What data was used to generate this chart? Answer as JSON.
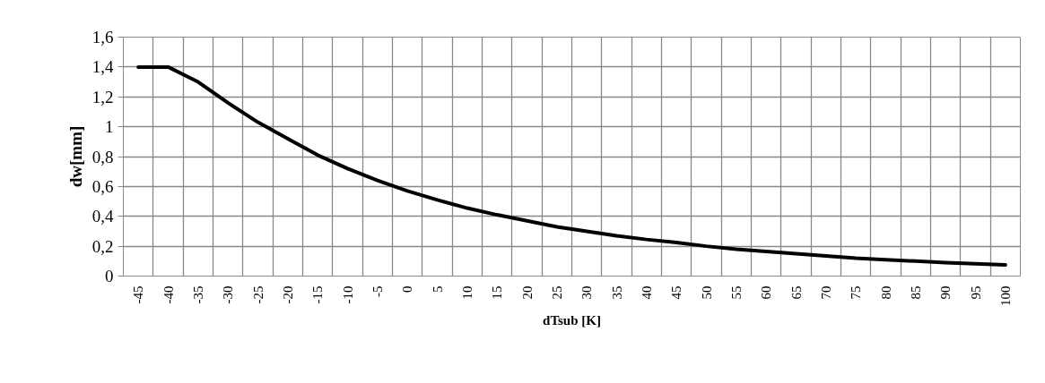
{
  "chart_data": {
    "type": "line",
    "xlabel": "dTsub [K]",
    "ylabel": "dw[mm]",
    "categories": [
      "-45",
      "-40",
      "-35",
      "-30",
      "-25",
      "-20",
      "-15",
      "-10",
      "-5",
      "0",
      "5",
      "10",
      "15",
      "20",
      "25",
      "30",
      "35",
      "40",
      "45",
      "50",
      "55",
      "60",
      "65",
      "70",
      "75",
      "80",
      "85",
      "90",
      "95",
      "100"
    ],
    "series": [
      {
        "color": "#000000",
        "values": [
          1.4,
          1.4,
          1.3,
          1.16,
          1.03,
          0.92,
          0.81,
          0.72,
          0.64,
          0.57,
          0.51,
          0.455,
          0.41,
          0.37,
          0.33,
          0.3,
          0.27,
          0.245,
          0.225,
          0.2,
          0.18,
          0.165,
          0.15,
          0.135,
          0.12,
          0.11,
          0.1,
          0.09,
          0.083,
          0.075
        ]
      }
    ],
    "ylim": [
      0,
      1.6
    ],
    "yticks": [
      0,
      {
        "value": 0.2,
        "label": "0,2"
      },
      {
        "value": 0.4,
        "label": "0,4"
      },
      {
        "value": 0.6,
        "label": "0,6"
      },
      {
        "value": 0.8,
        "label": "0,8"
      },
      1,
      {
        "value": 1.2,
        "label": "1,2"
      },
      {
        "value": 1.4,
        "label": "1,4"
      },
      {
        "value": 1.6,
        "label": "1,6"
      }
    ],
    "grid": true,
    "marker": "none",
    "line_style": "solid"
  }
}
